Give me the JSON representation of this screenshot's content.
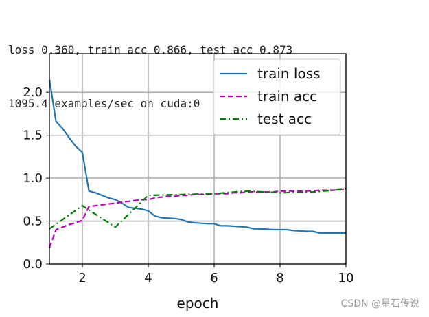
{
  "console": {
    "line1": "loss 0.360, train acc 0.866, test acc 0.873",
    "line2": "1095.4 examples/sec on cuda:0"
  },
  "watermark": "CSDN @星石传说",
  "chart_data": {
    "type": "line",
    "title": "",
    "xlabel": "epoch",
    "ylabel": "",
    "xlim": [
      1,
      10
    ],
    "ylim": [
      0,
      2.45
    ],
    "xticks": [
      2,
      4,
      6,
      8,
      10
    ],
    "xtick_labels": [
      "2",
      "4",
      "6",
      "8",
      "10"
    ],
    "yticks": [
      0.0,
      0.5,
      1.0,
      1.5,
      2.0
    ],
    "ytick_labels": [
      "0.0",
      "0.5",
      "1.0",
      "1.5",
      "2.0"
    ],
    "grid": true,
    "legend_position": "top-right",
    "series": [
      {
        "name": "train loss",
        "color": "#1f77b4",
        "style": "solid",
        "x": [
          1.0,
          1.2,
          1.4,
          1.6,
          1.8,
          2.0,
          2.2,
          2.4,
          2.6,
          2.8,
          3.0,
          3.2,
          3.4,
          3.6,
          3.8,
          4.0,
          4.2,
          4.4,
          4.6,
          4.8,
          5.0,
          5.2,
          5.4,
          5.6,
          5.8,
          6.0,
          6.2,
          6.4,
          6.6,
          6.8,
          7.0,
          7.2,
          7.4,
          7.6,
          7.8,
          8.0,
          8.2,
          8.4,
          8.6,
          8.8,
          9.0,
          9.2,
          9.4,
          9.6,
          9.8,
          10.0
        ],
        "y": [
          2.15,
          1.66,
          1.58,
          1.47,
          1.37,
          1.3,
          0.85,
          0.83,
          0.8,
          0.77,
          0.75,
          0.71,
          0.66,
          0.65,
          0.64,
          0.62,
          0.56,
          0.54,
          0.535,
          0.53,
          0.52,
          0.49,
          0.48,
          0.475,
          0.47,
          0.47,
          0.445,
          0.445,
          0.44,
          0.435,
          0.43,
          0.41,
          0.41,
          0.405,
          0.4,
          0.4,
          0.4,
          0.39,
          0.385,
          0.38,
          0.38,
          0.36,
          0.36,
          0.36,
          0.36,
          0.36
        ]
      },
      {
        "name": "train acc",
        "color": "#bf00bf",
        "style": "dashed",
        "x": [
          1.0,
          1.2,
          1.4,
          1.6,
          1.8,
          2.0,
          2.2,
          2.4,
          2.6,
          2.8,
          3.0,
          3.2,
          3.4,
          3.6,
          3.8,
          4.0,
          4.2,
          4.4,
          4.6,
          4.8,
          5.0,
          5.2,
          5.4,
          5.6,
          5.8,
          6.0,
          6.2,
          6.4,
          6.6,
          6.8,
          7.0,
          7.2,
          7.4,
          7.6,
          7.8,
          8.0,
          8.2,
          8.4,
          8.6,
          8.8,
          9.0,
          9.2,
          9.4,
          9.6,
          9.8,
          10.0
        ],
        "y": [
          0.19,
          0.4,
          0.43,
          0.46,
          0.48,
          0.51,
          0.67,
          0.68,
          0.69,
          0.7,
          0.71,
          0.72,
          0.73,
          0.74,
          0.75,
          0.75,
          0.77,
          0.78,
          0.79,
          0.79,
          0.8,
          0.8,
          0.81,
          0.81,
          0.81,
          0.82,
          0.82,
          0.82,
          0.83,
          0.83,
          0.84,
          0.84,
          0.84,
          0.84,
          0.84,
          0.85,
          0.85,
          0.85,
          0.85,
          0.85,
          0.855,
          0.86,
          0.86,
          0.86,
          0.865,
          0.866
        ]
      },
      {
        "name": "test acc",
        "color": "#008000",
        "style": "dashdot",
        "x": [
          1,
          2,
          3,
          4,
          5,
          6,
          7,
          8,
          9,
          10
        ],
        "y": [
          0.41,
          0.68,
          0.43,
          0.8,
          0.81,
          0.82,
          0.85,
          0.83,
          0.84,
          0.873
        ]
      }
    ]
  }
}
